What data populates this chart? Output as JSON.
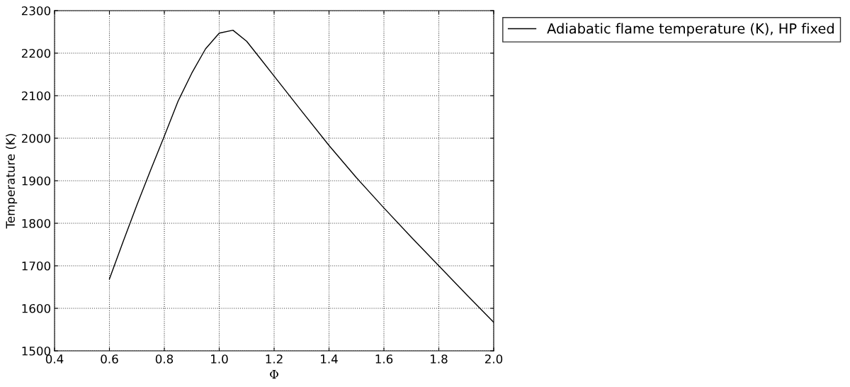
{
  "chart_data": {
    "type": "line",
    "xlabel": "Φ",
    "ylabel": "Temperature (K)",
    "series": [
      {
        "name": "Adiabatic flame temperature (K), HP fixed",
        "color": "#000000",
        "x": [
          0.6,
          0.65,
          0.7,
          0.75,
          0.8,
          0.85,
          0.9,
          0.95,
          1.0,
          1.05,
          1.1,
          1.15,
          1.2,
          1.3,
          1.4,
          1.5,
          1.6,
          1.7,
          1.8,
          1.9,
          2.0
        ],
        "values": [
          1669,
          1757,
          1843,
          1925,
          2005,
          2087,
          2153,
          2210,
          2247,
          2254,
          2228,
          2187,
          2146,
          2064,
          1983,
          1907,
          1836,
          1767,
          1700,
          1633,
          1567
        ]
      }
    ],
    "xlim": [
      0.4,
      2.0
    ],
    "xticks": [
      {
        "value": 0.4,
        "label": "0.4"
      },
      {
        "value": 0.6,
        "label": "0.6"
      },
      {
        "value": 0.8,
        "label": "0.8"
      },
      {
        "value": 1.0,
        "label": "1.0"
      },
      {
        "value": 1.2,
        "label": "1.2"
      },
      {
        "value": 1.4,
        "label": "1.4"
      },
      {
        "value": 1.6,
        "label": "1.6"
      },
      {
        "value": 1.8,
        "label": "1.8"
      },
      {
        "value": 2.0,
        "label": "2.0"
      }
    ],
    "ylim": [
      1500,
      2300
    ],
    "yticks": [
      1500,
      1600,
      1700,
      1800,
      1900,
      2000,
      2100,
      2200,
      2300
    ],
    "grid": true,
    "legend": "top right",
    "line_style": "solid",
    "marker": "none"
  }
}
